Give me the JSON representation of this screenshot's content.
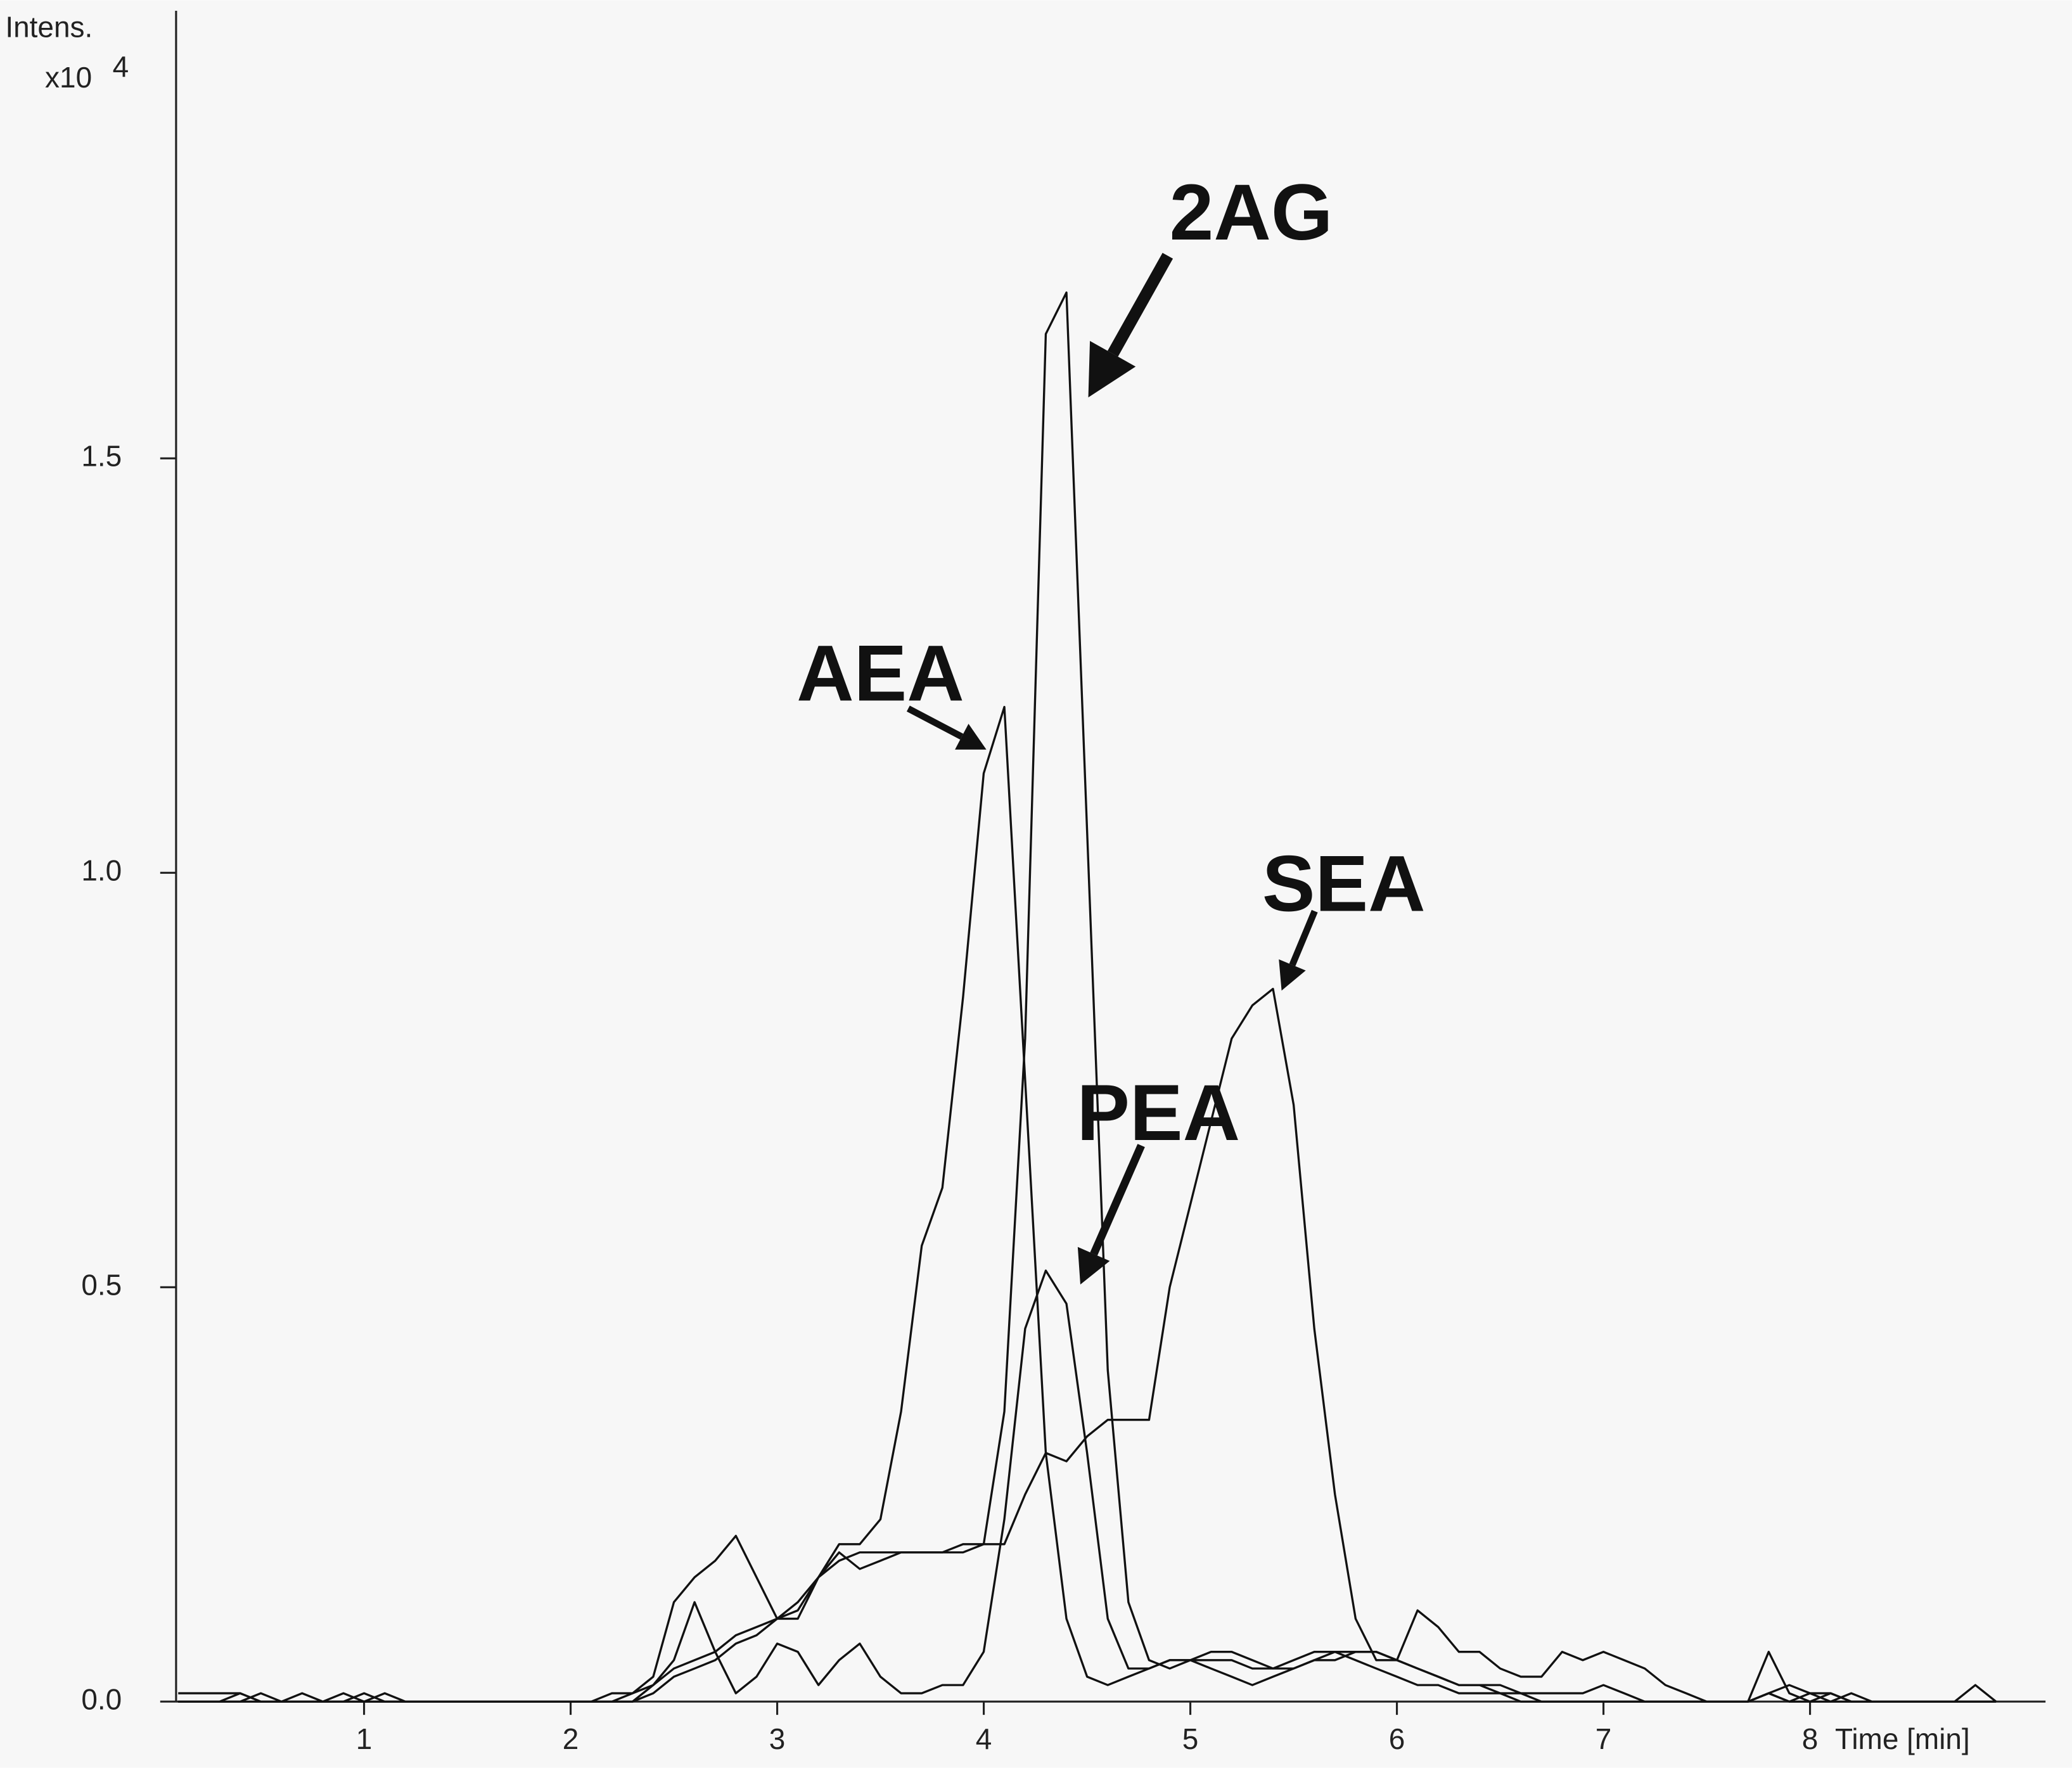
{
  "chart_data": {
    "type": "line",
    "y_label": "Intens.",
    "y_multiplier": "x10",
    "y_multiplier_exp": "4",
    "x_label": "Time [min]",
    "color": "#111111",
    "background": "#f7f7f7",
    "xlim": [
      0.09,
      9.14
    ],
    "ylim": [
      0,
      2.04
    ],
    "xticks": [
      1,
      2,
      3,
      4,
      5,
      6,
      7,
      8
    ],
    "yticks": [
      {
        "value": 0,
        "label": "0.0"
      },
      0.5,
      {
        "value": 1,
        "label": "1.0"
      },
      1.5
    ],
    "annotations": [
      {
        "text": "2AG"
      },
      {
        "text": "AEA"
      },
      {
        "text": "SEA"
      },
      {
        "text": "PEA"
      }
    ],
    "x": [
      0.1,
      0.2,
      0.3,
      0.4,
      0.5,
      0.6,
      0.7,
      0.8,
      0.9,
      1.0,
      1.1,
      1.2,
      1.3,
      1.4,
      1.5,
      1.6,
      1.7,
      1.8,
      1.9,
      2.0,
      2.1,
      2.2,
      2.3,
      2.4,
      2.5,
      2.6,
      2.7,
      2.8,
      2.9,
      3.0,
      3.1,
      3.2,
      3.3,
      3.4,
      3.5,
      3.6,
      3.7,
      3.8,
      3.9,
      4.0,
      4.1,
      4.2,
      4.3,
      4.4,
      4.5,
      4.6,
      4.7,
      4.8,
      4.9,
      5.0,
      5.1,
      5.2,
      5.3,
      5.4,
      5.5,
      5.6,
      5.7,
      5.8,
      5.9,
      6.0,
      6.1,
      6.2,
      6.3,
      6.4,
      6.5,
      6.6,
      6.7,
      6.8,
      6.9,
      7.0,
      7.1,
      7.2,
      7.3,
      7.4,
      7.5,
      7.6,
      7.7,
      7.8,
      7.9,
      8.0,
      8.1,
      8.2,
      8.3,
      8.4,
      8.5,
      8.6,
      8.7,
      8.8,
      8.9
    ],
    "series": [
      {
        "values": [
          0.01,
          0.01,
          0.01,
          0.01,
          0,
          0,
          0.01,
          0,
          0,
          0.01,
          0,
          0,
          0,
          0,
          0,
          0,
          0,
          0,
          0,
          0,
          0,
          0,
          0.01,
          0.02,
          0.04,
          0.05,
          0.06,
          0.08,
          0.09,
          0.1,
          0.11,
          0.15,
          0.18,
          0.16,
          0.17,
          0.18,
          0.18,
          0.18,
          0.19,
          0.19,
          0.35,
          0.8,
          1.65,
          1.7,
          1.05,
          0.4,
          0.12,
          0.05,
          0.04,
          0.05,
          0.06,
          0.06,
          0.05,
          0.04,
          0.05,
          0.06,
          0.06,
          0.05,
          0.04,
          0.03,
          0.02,
          0.02,
          0.01,
          0.01,
          0.01,
          0,
          0,
          0,
          0,
          0,
          0,
          0,
          0,
          0,
          0,
          0,
          0,
          0.01,
          0,
          0.01,
          0,
          0.01,
          0,
          0,
          0,
          0,
          0,
          0,
          0
        ]
      },
      {
        "values": [
          0,
          0,
          0,
          0.01,
          0,
          0,
          0,
          0,
          0.01,
          0,
          0.01,
          0,
          0,
          0,
          0,
          0,
          0,
          0,
          0,
          0,
          0,
          0.01,
          0.01,
          0.03,
          0.12,
          0.15,
          0.17,
          0.2,
          0.15,
          0.1,
          0.1,
          0.15,
          0.19,
          0.19,
          0.22,
          0.35,
          0.55,
          0.62,
          0.85,
          1.12,
          1.2,
          0.75,
          0.3,
          0.1,
          0.03,
          0.02,
          0.03,
          0.04,
          0.05,
          0.05,
          0.04,
          0.03,
          0.02,
          0.03,
          0.04,
          0.05,
          0.05,
          0.06,
          0.06,
          0.05,
          0.04,
          0.03,
          0.02,
          0.02,
          0.02,
          0.01,
          0.01,
          0.01,
          0.01,
          0.02,
          0.01,
          0,
          0,
          0,
          0,
          0,
          0,
          0.01,
          0.02,
          0.01,
          0.01,
          0,
          0,
          0,
          0,
          0,
          0,
          0,
          0
        ]
      },
      {
        "values": [
          0,
          0,
          0,
          0,
          0.01,
          0,
          0,
          0,
          0,
          0,
          0,
          0,
          0,
          0,
          0,
          0,
          0,
          0,
          0,
          0,
          0,
          0,
          0,
          0.02,
          0.05,
          0.12,
          0.06,
          0.01,
          0.03,
          0.07,
          0.06,
          0.02,
          0.05,
          0.07,
          0.03,
          0.01,
          0.01,
          0.02,
          0.02,
          0.06,
          0.22,
          0.45,
          0.52,
          0.48,
          0.3,
          0.1,
          0.04,
          0.04,
          0.05,
          0.05,
          0.05,
          0.05,
          0.04,
          0.04,
          0.04,
          0.05,
          0.06,
          0.06,
          0.06,
          0.05,
          0.11,
          0.09,
          0.06,
          0.06,
          0.04,
          0.03,
          0.03,
          0.06,
          0.05,
          0.06,
          0.05,
          0.04,
          0.02,
          0.01,
          0,
          0,
          0,
          0.06,
          0.01,
          0,
          0.01,
          0,
          0,
          0,
          0,
          0,
          0,
          0.02,
          0
        ]
      },
      {
        "values": [
          0,
          0,
          0,
          0,
          0,
          0,
          0,
          0,
          0,
          0,
          0,
          0,
          0,
          0,
          0,
          0,
          0,
          0,
          0,
          0,
          0,
          0,
          0,
          0.01,
          0.03,
          0.04,
          0.05,
          0.07,
          0.08,
          0.1,
          0.12,
          0.15,
          0.17,
          0.18,
          0.18,
          0.18,
          0.18,
          0.18,
          0.18,
          0.19,
          0.19,
          0.25,
          0.3,
          0.29,
          0.32,
          0.34,
          0.34,
          0.34,
          0.5,
          0.6,
          0.7,
          0.8,
          0.84,
          0.86,
          0.72,
          0.45,
          0.25,
          0.1,
          0.05,
          0.05,
          0.04,
          0.03,
          0.02,
          0.02,
          0.01,
          0.01,
          0,
          0,
          0,
          0,
          0,
          0,
          0,
          0,
          0,
          0,
          0,
          0.01,
          0,
          0,
          0,
          0,
          0,
          0,
          0,
          0,
          0,
          0,
          0
        ]
      }
    ]
  }
}
